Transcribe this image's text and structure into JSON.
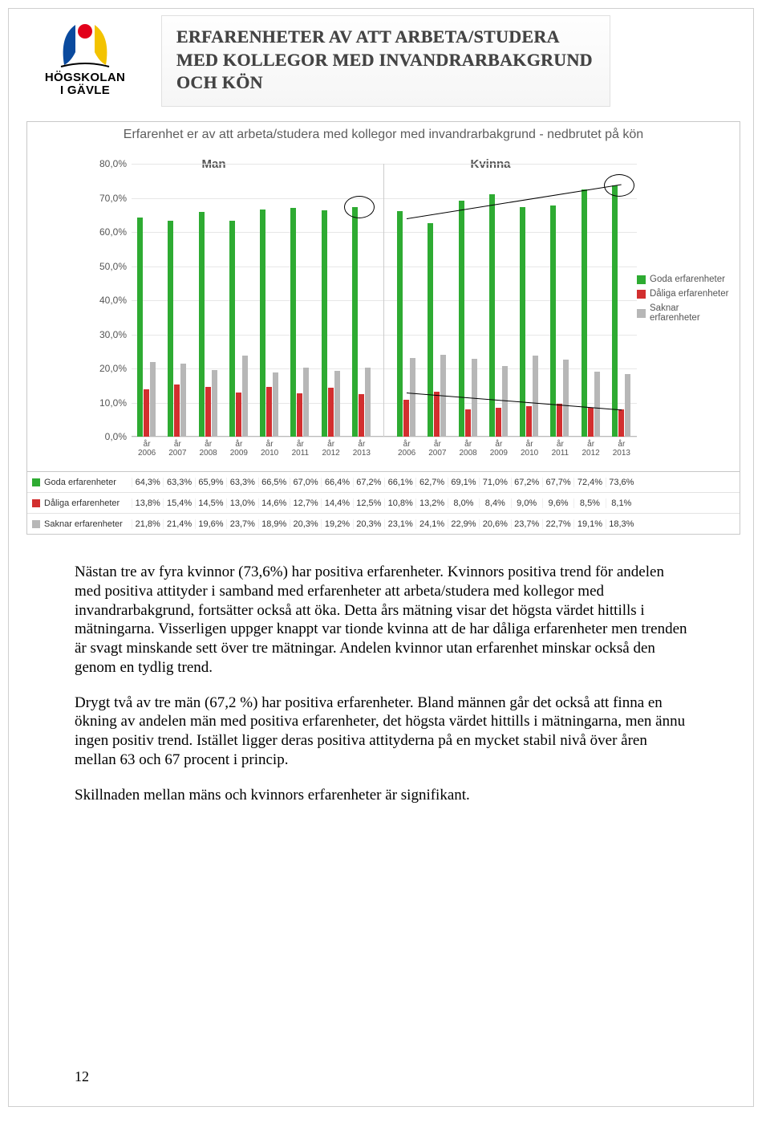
{
  "logo": {
    "line1": "HÖGSKOLAN",
    "line2": "I GÄVLE",
    "colors": {
      "red": "#e2001a",
      "blue": "#0a4a9e",
      "yellow": "#f3c300"
    }
  },
  "title": "ERFARENHETER AV ATT ARBETA/STUDERA MED KOLLEGOR MED INVANDRARBAKGRUND OCH KÖN",
  "chart": {
    "title": "Erfarenhet er av att arbeta/studera med kollegor med invandrarbakgrund - nedbrutet på kön",
    "panel_labels": [
      "Man",
      "Kvinna"
    ],
    "ylim": [
      0,
      80
    ],
    "ytick_step": 10,
    "year_label": "år",
    "years": [
      "2006",
      "2007",
      "2008",
      "2009",
      "2010",
      "2011",
      "2012",
      "2013"
    ],
    "series": [
      {
        "key": "goda",
        "label": "Goda erfarenheter",
        "color": "#2eab32",
        "man": [
          64.3,
          63.3,
          65.9,
          63.3,
          66.5,
          67.0,
          66.4,
          67.2
        ],
        "kvinna": [
          66.1,
          62.7,
          69.1,
          71.0,
          67.2,
          67.7,
          72.4,
          73.6
        ]
      },
      {
        "key": "daliga",
        "label": "Dåliga erfarenheter",
        "color": "#d22f2f",
        "man": [
          13.8,
          15.4,
          14.5,
          13.0,
          14.6,
          12.7,
          14.4,
          12.5
        ],
        "kvinna": [
          10.8,
          13.2,
          8.0,
          8.4,
          9.0,
          9.6,
          8.5,
          8.1
        ]
      },
      {
        "key": "saknar",
        "label": "Saknar erfarenheter",
        "color": "#b7b7b7",
        "man": [
          21.8,
          21.4,
          19.6,
          23.7,
          18.9,
          20.3,
          19.2,
          20.3
        ],
        "kvinna": [
          23.1,
          24.1,
          22.9,
          20.6,
          23.7,
          22.7,
          19.1,
          18.3
        ]
      }
    ],
    "grid_color": "#e7e7e7",
    "axis_color": "#bbbbbb",
    "text_color": "#555555",
    "background_color": "#ffffff",
    "table_row_labels": [
      "Goda erfarenheter",
      "Dåliga erfarenheter",
      "Saknar erfarenheter"
    ]
  },
  "paragraphs": [
    "Nästan tre av fyra kvinnor (73,6%) har positiva erfarenheter. Kvinnors positiva trend för andelen med positiva attityder i samband med erfarenheter att arbeta/studera med kollegor med invandrarbakgrund, fortsätter också att öka. Detta års mätning visar det högsta värdet hittills i mätningarna. Visserligen uppger knappt var tionde kvinna att de har dåliga erfarenheter men trenden är svagt minskande sett över tre mätningar. Andelen kvinnor utan erfarenhet minskar också den genom en tydlig trend.",
    "Drygt två av tre män (67,2 %) har positiva erfarenheter. Bland männen går det också att finna en ökning av andelen män med positiva erfarenheter, det högsta värdet hittills i mätningarna, men ännu ingen positiv trend. Istället ligger deras positiva attityderna på en mycket stabil nivå över åren mellan 63 och 67 procent i princip.",
    "Skillnaden mellan mäns och kvinnors erfarenheter är signifikant."
  ],
  "page_number": "12"
}
